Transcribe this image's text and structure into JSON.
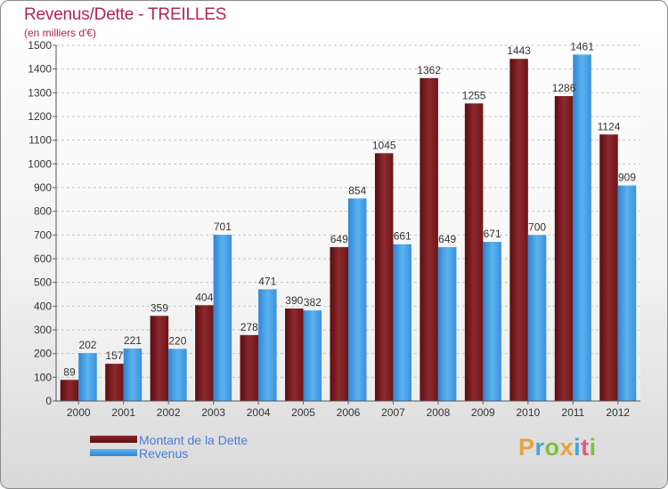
{
  "title": "Revenus/Dette - TREILLES",
  "subtitle": "(en milliers d'€)",
  "legend": {
    "dette": "Montant de la Dette",
    "revenus": "Revenus"
  },
  "logo": "Proxiti",
  "colors": {
    "dette": "#7a1a1e",
    "revenus": "#3f9ae0",
    "title": "#b0245a",
    "legend_text": "#4a7bd9"
  },
  "chart_data": {
    "type": "bar",
    "title": "Revenus/Dette - TREILLES",
    "ylabel": "(en milliers d'€)",
    "xlabel": "",
    "ylim": [
      0,
      1500
    ],
    "yticks": [
      0,
      100,
      200,
      300,
      400,
      500,
      600,
      700,
      800,
      900,
      1000,
      1100,
      1200,
      1300,
      1400,
      1500
    ],
    "grid": "horizontal dashed",
    "legend_position": "bottom-left",
    "categories": [
      "2000",
      "2001",
      "2002",
      "2003",
      "2004",
      "2005",
      "2006",
      "2007",
      "2008",
      "2009",
      "2010",
      "2011",
      "2012"
    ],
    "series": [
      {
        "name": "Montant de la Dette",
        "values": [
          89,
          157,
          359,
          404,
          278,
          390,
          649,
          1045,
          1362,
          1255,
          1443,
          1286,
          1124
        ]
      },
      {
        "name": "Revenus",
        "values": [
          202,
          221,
          220,
          701,
          471,
          382,
          854,
          661,
          649,
          671,
          700,
          1461,
          909
        ]
      }
    ]
  }
}
